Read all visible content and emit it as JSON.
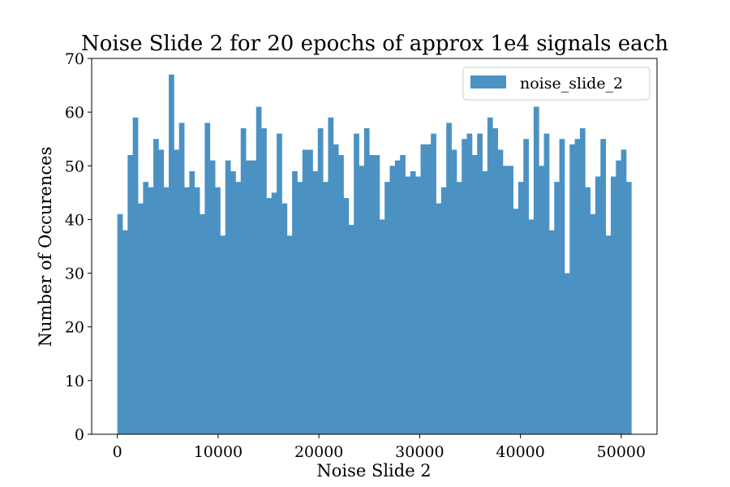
{
  "chart_data": {
    "type": "bar",
    "title": "Noise Slide 2 for 20 epochs of approx 1e4 signals each",
    "xlabel": "Noise Slide 2",
    "ylabel": "Number of Occurences",
    "xlim": [
      -2550,
      53550
    ],
    "ylim": [
      0,
      70
    ],
    "xticks": [
      0,
      10000,
      20000,
      30000,
      40000,
      50000
    ],
    "xtick_labels": [
      "0",
      "10000",
      "20000",
      "30000",
      "40000",
      "50000"
    ],
    "yticks": [
      0,
      10,
      20,
      30,
      40,
      50,
      60,
      70
    ],
    "ytick_labels": [
      "0",
      "10",
      "20",
      "30",
      "40",
      "50",
      "60",
      "70"
    ],
    "bin_start": 0,
    "bin_end": 51000,
    "grid": false,
    "legend_position": "top-right",
    "series": [
      {
        "name": "noise_slide_2",
        "color": "#4b92c3",
        "values": [
          41,
          38,
          52,
          59,
          43,
          47,
          46,
          55,
          53,
          46,
          67,
          53,
          58,
          46,
          49,
          46,
          41,
          58,
          51,
          46,
          37,
          51,
          49,
          47,
          57,
          51,
          51,
          61,
          57,
          44,
          45,
          56,
          43,
          37,
          49,
          47,
          53,
          53,
          49,
          57,
          47,
          59,
          54,
          52,
          44,
          39,
          56,
          50,
          57,
          52,
          52,
          40,
          47,
          50,
          51,
          52,
          48,
          49,
          48,
          54,
          54,
          56,
          43,
          46,
          58,
          53,
          47,
          55,
          56,
          52,
          56,
          49,
          59,
          57,
          53,
          50,
          50,
          42,
          47,
          55,
          40,
          61,
          50,
          56,
          38,
          47,
          55,
          30,
          54,
          55,
          57,
          46,
          41,
          48,
          55,
          37,
          48,
          51,
          53,
          47
        ]
      }
    ]
  }
}
